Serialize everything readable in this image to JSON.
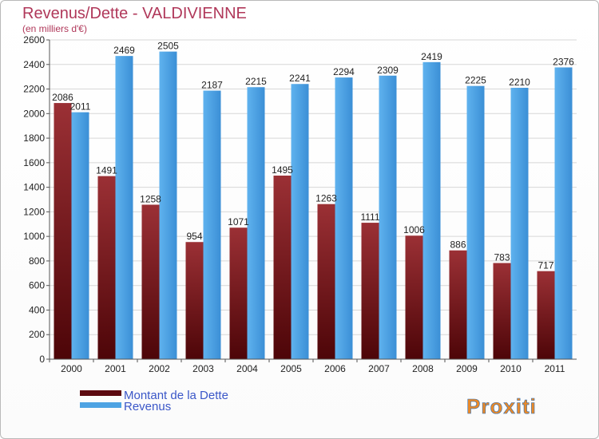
{
  "header": {
    "title": "Revenus/Dette - VALDIVIENNE",
    "subtitle": "(en milliers d'€)"
  },
  "brand": {
    "logo_text": "Proxiti"
  },
  "colors": {
    "dette": "#6e1118",
    "revenus": "#4ea3e3",
    "title": "#b0385a"
  },
  "chart_data": {
    "type": "bar",
    "categories": [
      "2000",
      "2001",
      "2002",
      "2003",
      "2004",
      "2005",
      "2006",
      "2007",
      "2008",
      "2009",
      "2010",
      "2011"
    ],
    "series": [
      {
        "name": "Montant de la Dette",
        "values": [
          2086,
          1491,
          1258,
          954,
          1071,
          1495,
          1263,
          1111,
          1006,
          886,
          783,
          717
        ]
      },
      {
        "name": "Revenus",
        "values": [
          2011,
          2469,
          2505,
          2187,
          2215,
          2241,
          2294,
          2309,
          2419,
          2225,
          2210,
          2376
        ]
      }
    ],
    "yticks": [
      0,
      200,
      400,
      600,
      800,
      1000,
      1200,
      1400,
      1600,
      1800,
      2000,
      2200,
      2400,
      2600
    ],
    "ylim": [
      0,
      2600
    ],
    "grid": true,
    "legend_position": "bottom-left"
  }
}
